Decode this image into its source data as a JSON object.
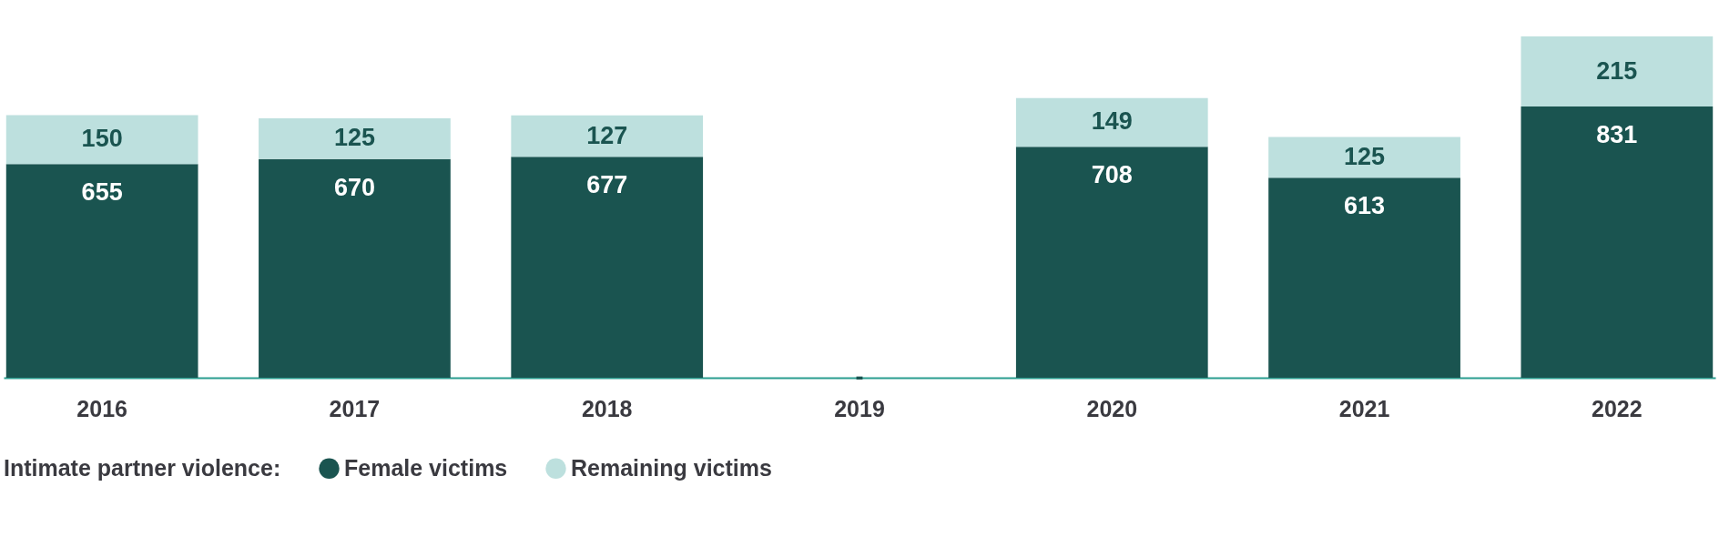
{
  "chart_data": {
    "type": "bar",
    "stacked": true,
    "categories": [
      "2016",
      "2017",
      "2018",
      "2019",
      "2020",
      "2021",
      "2022"
    ],
    "legend_title": "Intimate partner violence:",
    "legend": "bottom",
    "grid": false,
    "tick_labels": "x",
    "series": [
      {
        "name": "Female victims",
        "color": "#1a5450",
        "values": [
          655,
          670,
          677,
          null,
          708,
          613,
          831
        ],
        "value_labels": [
          "655",
          "670",
          "677",
          "-",
          "708",
          "613",
          "831"
        ]
      },
      {
        "name": "Remaining victims",
        "color": "#bde0de",
        "values": [
          150,
          125,
          127,
          null,
          149,
          125,
          215
        ],
        "value_labels": [
          "150",
          "125",
          "127",
          null,
          "149",
          "125",
          "215"
        ]
      }
    ]
  }
}
